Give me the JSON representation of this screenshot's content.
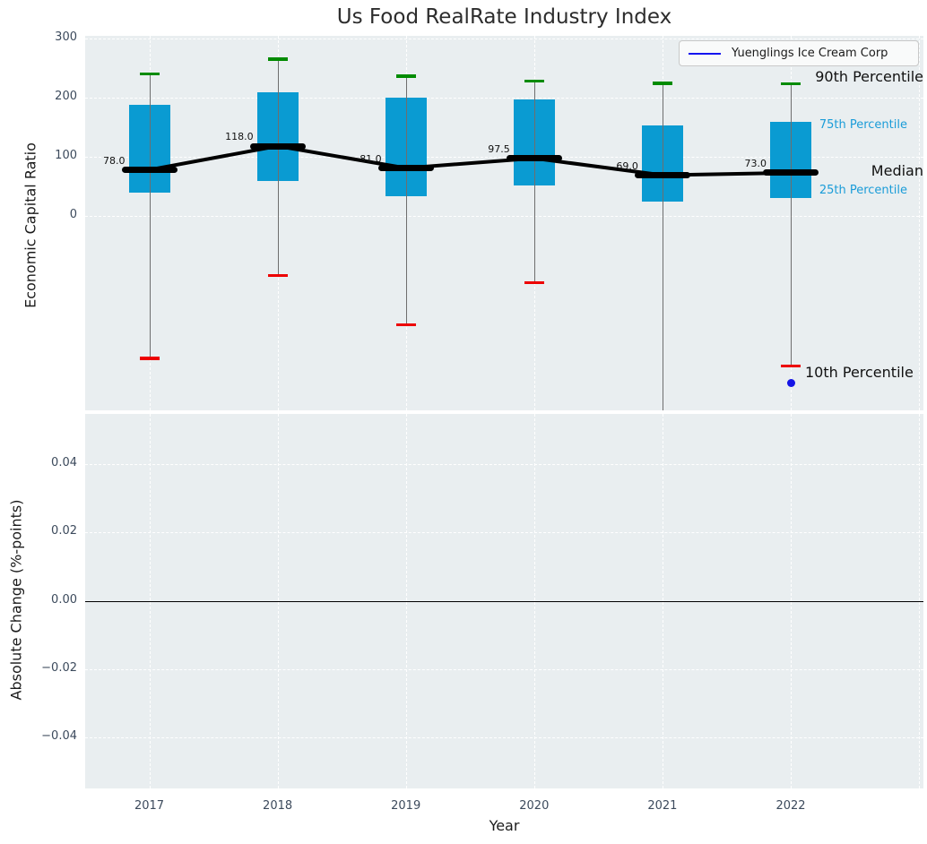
{
  "title": "Us Food RealRate Industry Index",
  "xlabel": "Year",
  "legend": {
    "label": "Yuenglings Ice Cream Corp"
  },
  "panels": {
    "top": {
      "ylabel": "Economic Capital Ratio"
    },
    "bottom": {
      "ylabel": "Absolute Change (%-points)"
    }
  },
  "percentile_labels": {
    "p90": "90th Percentile",
    "p75": "75th Percentile",
    "median": "Median",
    "p25": "25th Percentile",
    "p10": "10th Percentile"
  },
  "colors": {
    "box_fill": "#0a9bd2",
    "cap_top": "#008b00",
    "cap_bottom": "#ed0000",
    "median_line": "#000000",
    "company": "#1414e6",
    "panel_bg": "#e9eef0",
    "grid": "#ffffff",
    "tick_text": "#3c4a5c",
    "percentile_small_text": "#1a9cd8"
  },
  "chart_data": {
    "type": "boxplot",
    "title": "Us Food RealRate Industry Index",
    "categories": [
      "2017",
      "2018",
      "2019",
      "2020",
      "2021",
      "2022"
    ],
    "xlabel": "Year",
    "grid": true,
    "legend_entries": [
      "Yuenglings Ice Cream Corp"
    ],
    "top": {
      "ylabel": "Economic Capital Ratio",
      "ylim": [
        -330,
        305
      ],
      "yticks": [
        0,
        100,
        200,
        300
      ],
      "ytick_labels": [
        "0",
        "100",
        "200",
        "300"
      ],
      "series": {
        "p90": [
          240,
          265,
          236,
          228,
          224,
          223
        ],
        "p75": [
          188,
          209,
          200,
          197,
          153,
          159
        ],
        "median": [
          78.0,
          118.0,
          81.0,
          97.5,
          69.0,
          73.0
        ],
        "p25": [
          40,
          59,
          33,
          52,
          25,
          31
        ],
        "p10": [
          -240,
          -100,
          -183,
          -112,
          -340,
          -253
        ]
      },
      "p10_clipped": [
        false,
        false,
        false,
        false,
        true,
        false
      ],
      "median_labels": [
        "78.0",
        "118.0",
        "81.0",
        "97.5",
        "69.0",
        "73.0"
      ],
      "company_series": {
        "name": "Yuenglings Ice Cream Corp",
        "points": [
          {
            "year": "2022",
            "value": -281
          }
        ]
      }
    },
    "bottom": {
      "ylabel": "Absolute Change (%-points)",
      "ylim": [
        -0.055,
        0.055
      ],
      "yticks": [
        0.04,
        0.02,
        0.0,
        -0.02,
        -0.04
      ],
      "ytick_labels": [
        "0.04",
        "0.02",
        "0.00",
        "−0.02",
        "−0.04"
      ],
      "zero_line": 0.0,
      "series": []
    }
  }
}
